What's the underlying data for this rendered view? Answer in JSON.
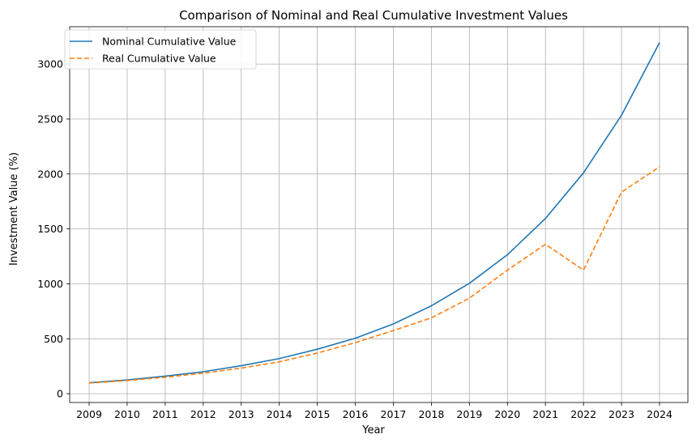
{
  "chart_data": {
    "type": "line",
    "title": "Comparison of Nominal and Real Cumulative Investment Values",
    "xlabel": "Year",
    "ylabel": "Investment Value (%)",
    "x": [
      "2009",
      "2010",
      "2011",
      "2012",
      "2013",
      "2014",
      "2015",
      "2016",
      "2017",
      "2018",
      "2019",
      "2020",
      "2021",
      "2022",
      "2023",
      "2024"
    ],
    "ylim": [
      -80,
      3340
    ],
    "yticks": [
      0,
      500,
      1000,
      1500,
      2000,
      2500,
      3000
    ],
    "grid": true,
    "legend_position": "top-left",
    "series": [
      {
        "name": "Nominal Cumulative Value",
        "color": "#1f77b4",
        "style": "solid",
        "values": [
          100,
          125,
          160,
          200,
          255,
          320,
          405,
          505,
          635,
          800,
          1005,
          1265,
          1595,
          2010,
          2535,
          3195
        ]
      },
      {
        "name": "Real Cumulative Value",
        "color": "#ff7f0e",
        "style": "dashed",
        "values": [
          97,
          120,
          150,
          187,
          233,
          290,
          370,
          465,
          575,
          690,
          870,
          1125,
          1360,
          1125,
          1835,
          2065
        ]
      }
    ]
  }
}
